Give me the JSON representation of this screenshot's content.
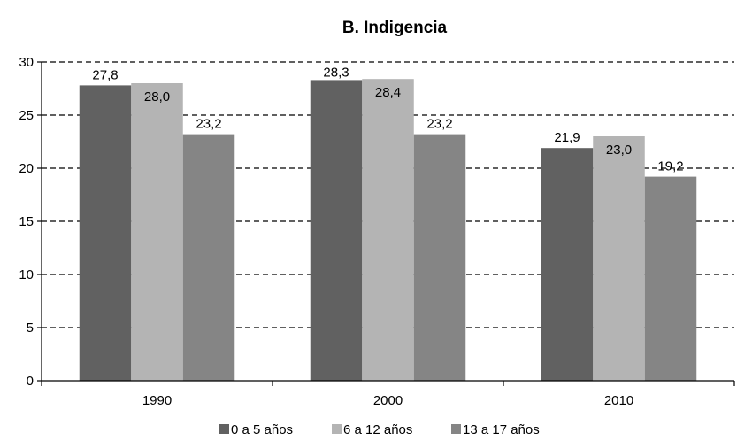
{
  "chart_data": {
    "type": "bar",
    "title": "B. Indigencia",
    "xlabel": "",
    "ylabel": "",
    "categories": [
      "1990",
      "2000",
      "2010"
    ],
    "series": [
      {
        "name": "0 a 5 años",
        "values": [
          27.8,
          28.3,
          21.9
        ],
        "labels": [
          "27,8",
          "28,3",
          "21,9"
        ],
        "color": "#616161"
      },
      {
        "name": "6 a 12 años",
        "values": [
          28.0,
          28.4,
          23.0
        ],
        "labels": [
          "28,0",
          "28,4",
          "23,0"
        ],
        "color": "#b4b4b4"
      },
      {
        "name": "13 a 17 años",
        "values": [
          23.2,
          23.2,
          19.2
        ],
        "labels": [
          "23,2",
          "23,2",
          "19,2"
        ],
        "color": "#858585"
      }
    ],
    "ylim": [
      0,
      30
    ],
    "yticks": [
      0,
      5,
      10,
      15,
      20,
      25,
      30
    ],
    "grid": "dashed horizontal",
    "legend": "bottom"
  }
}
